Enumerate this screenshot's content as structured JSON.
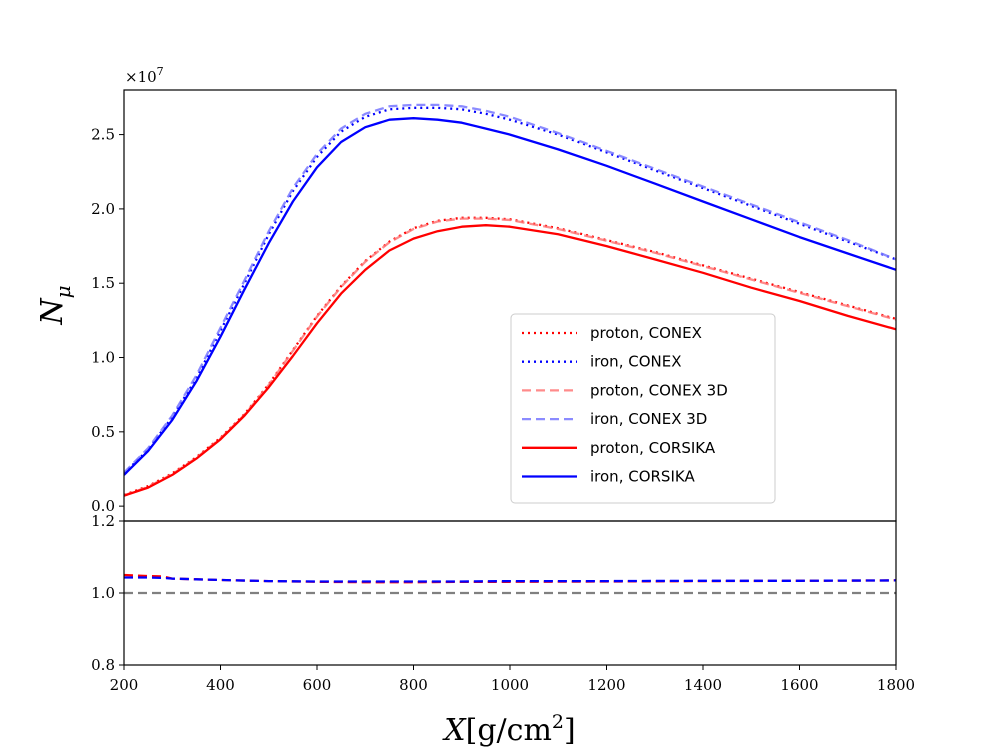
{
  "chart_data": [
    {
      "type": "line",
      "panel": "main",
      "ylabel_base": "N",
      "ylabel_sub": "μ",
      "offset_base": "×10",
      "offset_exp": "7",
      "xlim": [
        200,
        1800
      ],
      "ylim": [
        -0.1,
        2.8
      ],
      "yticks": [
        "0.0",
        "0.5",
        "1.0",
        "1.5",
        "2.0",
        "2.5"
      ],
      "ytick_values": [
        0.0,
        0.5,
        1.0,
        1.5,
        2.0,
        2.5
      ],
      "legend_position": "center-right",
      "x": [
        200,
        250,
        300,
        350,
        400,
        450,
        500,
        550,
        600,
        650,
        700,
        750,
        800,
        850,
        900,
        950,
        1000,
        1100,
        1200,
        1300,
        1400,
        1500,
        1600,
        1700,
        1800
      ],
      "series": [
        {
          "name": "proton, CONEX",
          "color": "#ff0000",
          "style": "dotted",
          "opacity": 1.0,
          "values": [
            0.075,
            0.135,
            0.22,
            0.33,
            0.46,
            0.62,
            0.82,
            1.05,
            1.28,
            1.48,
            1.65,
            1.78,
            1.87,
            1.92,
            1.94,
            1.94,
            1.93,
            1.87,
            1.79,
            1.71,
            1.62,
            1.53,
            1.44,
            1.35,
            1.26
          ]
        },
        {
          "name": "iron, CONEX",
          "color": "#0000ff",
          "style": "dotted",
          "opacity": 1.0,
          "values": [
            0.22,
            0.38,
            0.6,
            0.86,
            1.18,
            1.5,
            1.83,
            2.12,
            2.35,
            2.52,
            2.62,
            2.67,
            2.68,
            2.68,
            2.67,
            2.64,
            2.6,
            2.5,
            2.38,
            2.26,
            2.14,
            2.02,
            1.9,
            1.78,
            1.66
          ]
        },
        {
          "name": "proton, CONEX 3D",
          "color": "#ff7777",
          "style": "dashed",
          "opacity": 0.85,
          "values": [
            0.072,
            0.13,
            0.215,
            0.325,
            0.455,
            0.615,
            0.815,
            1.045,
            1.275,
            1.475,
            1.645,
            1.775,
            1.865,
            1.915,
            1.935,
            1.935,
            1.925,
            1.865,
            1.785,
            1.705,
            1.615,
            1.525,
            1.435,
            1.345,
            1.255
          ]
        },
        {
          "name": "iron, CONEX 3D",
          "color": "#7777ff",
          "style": "dashed",
          "opacity": 0.85,
          "values": [
            0.225,
            0.39,
            0.61,
            0.88,
            1.2,
            1.52,
            1.85,
            2.14,
            2.37,
            2.54,
            2.64,
            2.69,
            2.7,
            2.7,
            2.69,
            2.66,
            2.62,
            2.51,
            2.39,
            2.27,
            2.15,
            2.03,
            1.91,
            1.79,
            1.66
          ]
        },
        {
          "name": "proton, CORSIKA",
          "color": "#ff0000",
          "style": "solid",
          "opacity": 1.0,
          "values": [
            0.07,
            0.125,
            0.21,
            0.32,
            0.45,
            0.61,
            0.8,
            1.01,
            1.23,
            1.43,
            1.59,
            1.72,
            1.8,
            1.85,
            1.88,
            1.89,
            1.88,
            1.83,
            1.75,
            1.66,
            1.57,
            1.47,
            1.38,
            1.28,
            1.19
          ]
        },
        {
          "name": "iron, CORSIKA",
          "color": "#0000ff",
          "style": "solid",
          "opacity": 1.0,
          "values": [
            0.21,
            0.37,
            0.58,
            0.84,
            1.14,
            1.46,
            1.77,
            2.05,
            2.28,
            2.45,
            2.55,
            2.6,
            2.61,
            2.6,
            2.58,
            2.54,
            2.5,
            2.4,
            2.29,
            2.17,
            2.05,
            1.93,
            1.81,
            1.7,
            1.59
          ]
        }
      ]
    },
    {
      "type": "line",
      "panel": "ratio",
      "xlabel_base": "X",
      "xlabel_unit": "[g/cm",
      "xlabel_exp": "2",
      "xlabel_close": "]",
      "xlim": [
        200,
        1800
      ],
      "ylim": [
        0.8,
        1.2
      ],
      "yticks": [
        "0.8",
        "1.0",
        "1.2"
      ],
      "ytick_values": [
        0.8,
        1.0,
        1.2
      ],
      "xticks": [
        "200",
        "400",
        "600",
        "800",
        "1000",
        "1200",
        "1400",
        "1600",
        "1800"
      ],
      "xtick_values": [
        200,
        400,
        600,
        800,
        1000,
        1200,
        1400,
        1600,
        1800
      ],
      "reference_line": {
        "y": 1.0,
        "color": "#808080",
        "style": "dashed"
      },
      "x": [
        200,
        250,
        280,
        300,
        350,
        400,
        500,
        600,
        700,
        800,
        900,
        1000,
        1200,
        1400,
        1600,
        1800
      ],
      "series": [
        {
          "color": "#ff0000",
          "style": "dashed",
          "values": [
            1.05,
            1.047,
            1.046,
            1.04,
            1.038,
            1.036,
            1.033,
            1.031,
            1.03,
            1.03,
            1.031,
            1.031,
            1.032,
            1.033,
            1.034,
            1.035
          ]
        },
        {
          "color": "#0000ff",
          "style": "dashed",
          "values": [
            1.043,
            1.043,
            1.042,
            1.04,
            1.038,
            1.036,
            1.033,
            1.032,
            1.032,
            1.032,
            1.032,
            1.033,
            1.033,
            1.034,
            1.034,
            1.035
          ]
        }
      ]
    }
  ]
}
